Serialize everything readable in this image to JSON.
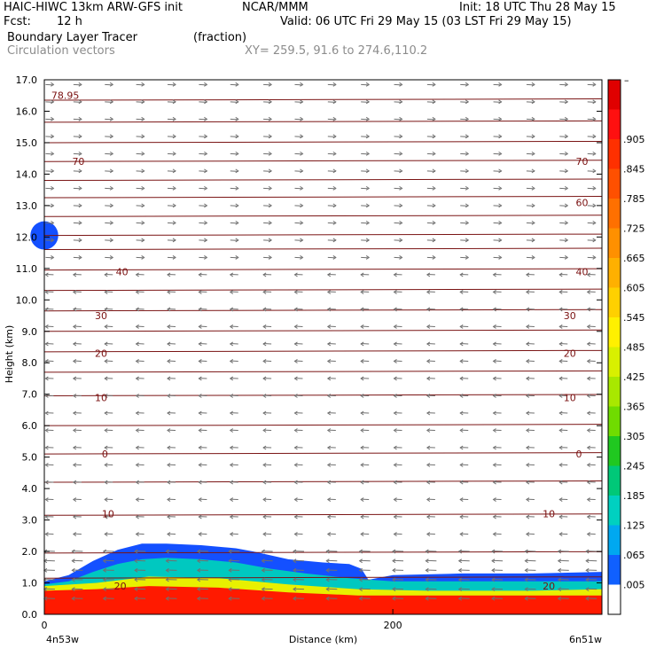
{
  "header": {
    "model": "HAIC-HIWC 13km ARW-GFS init",
    "org": "NCAR/MMM",
    "init": "Init: 18 UTC Thu 28 May 15",
    "fcst_label": "Fcst:",
    "fcst_value": "12 h",
    "valid": "Valid: 06 UTC Fri 29 May 15 (03 LST Fri 29 May 15)",
    "field1": "Boundary Layer Tracer",
    "field1_units": "(fraction)",
    "field2": "Circulation vectors",
    "xy": "XY= 259.5, 91.6 to 274.6,110.2"
  },
  "chart_data": {
    "type": "heatmap",
    "xlabel": "Distance (km)",
    "ylabel": "Height (km)",
    "xlim": [
      0,
      320
    ],
    "ylim": [
      0,
      17
    ],
    "x_ticks": [
      {
        "value": 0,
        "label": "0"
      },
      {
        "value": 200,
        "label": "200"
      }
    ],
    "x_end_labels": {
      "left": "4n53w",
      "right": "6n51w"
    },
    "y_ticks": [
      "0.0",
      "1.0",
      "2.0",
      "3.0",
      "4.0",
      "5.0",
      "6.0",
      "7.0",
      "8.0",
      "9.0",
      "10.0",
      "11.0",
      "12.0",
      "13.0",
      "14.0",
      "15.0",
      "16.0",
      "17.0"
    ],
    "colorbar": {
      "top_label": "–",
      "labels": [
        ".905",
        ".845",
        ".785",
        ".725",
        ".665",
        ".605",
        ".545",
        ".485",
        ".425",
        ".365",
        ".305",
        ".245",
        ".185",
        ".125",
        ".065",
        ".005"
      ],
      "colors": [
        "#e00000",
        "#ff1010",
        "#ff3000",
        "#ff5000",
        "#ff7000",
        "#ff9000",
        "#ffb000",
        "#ffd000",
        "#fff000",
        "#d8f000",
        "#a8e800",
        "#70dc00",
        "#20c820",
        "#00c878",
        "#00d0c0",
        "#00a8f0",
        "#1060ff",
        "#ffffff"
      ]
    },
    "contour_labels": [
      {
        "text": "78.95",
        "x": 4,
        "y": 16.5
      },
      {
        "text": "70",
        "x": 16,
        "y": 14.4
      },
      {
        "text": "70",
        "x": 305,
        "y": 14.4
      },
      {
        "text": "60",
        "x": 305,
        "y": 13.1
      },
      {
        "text": "40",
        "x": 41,
        "y": 10.9
      },
      {
        "text": "40",
        "x": 305,
        "y": 10.9
      },
      {
        "text": "30",
        "x": 29,
        "y": 9.5
      },
      {
        "text": "30",
        "x": 298,
        "y": 9.5
      },
      {
        "text": "20",
        "x": 29,
        "y": 8.3
      },
      {
        "text": "20",
        "x": 298,
        "y": 8.3
      },
      {
        "text": "10",
        "x": 29,
        "y": 6.9
      },
      {
        "text": "10",
        "x": 298,
        "y": 6.9
      },
      {
        "text": "0",
        "x": 33,
        "y": 5.1
      },
      {
        "text": "0",
        "x": 305,
        "y": 5.1
      },
      {
        "text": "10",
        "x": 33,
        "y": 3.2
      },
      {
        "text": "10",
        "x": 286,
        "y": 3.2
      },
      {
        "text": "20",
        "x": 40,
        "y": 0.9
      },
      {
        "text": "20",
        "x": 286,
        "y": 0.9
      }
    ],
    "contour_lines": {
      "heights": [
        1.15,
        1.95,
        3.15,
        4.2,
        5.1,
        6.0,
        6.95,
        7.7,
        8.35,
        9.0,
        9.65,
        10.3,
        10.95,
        11.6,
        12.05,
        12.65,
        13.25,
        13.8,
        14.4,
        15.0,
        15.65,
        16.35
      ]
    },
    "vectors": {
      "columns": [
        3,
        19,
        37,
        55,
        73,
        91,
        109,
        128,
        146,
        165,
        184,
        203,
        222,
        241,
        260,
        279,
        298,
        314
      ],
      "levels": [
        0.5,
        0.8,
        1.1,
        1.4,
        1.7,
        2.0,
        2.55,
        3.1,
        3.65,
        4.2,
        4.75,
        5.3,
        5.85,
        6.4,
        6.95,
        7.5,
        8.05,
        8.6,
        9.15,
        9.7,
        10.25,
        10.8,
        11.35,
        11.9,
        12.45,
        13.0,
        13.55,
        14.1,
        14.65,
        15.2,
        15.75,
        16.3,
        16.85
      ],
      "direction_change_km": 11.0
    },
    "tracer": {
      "outer_top": [
        [
          0,
          1.05
        ],
        [
          14,
          1.25
        ],
        [
          28,
          1.7
        ],
        [
          42,
          2.05
        ],
        [
          56,
          2.25
        ],
        [
          70,
          2.25
        ],
        [
          90,
          2.2
        ],
        [
          110,
          2.1
        ],
        [
          120,
          2.0
        ],
        [
          140,
          1.75
        ],
        [
          160,
          1.65
        ],
        [
          175,
          1.6
        ],
        [
          182,
          1.45
        ],
        [
          186,
          1.1
        ],
        [
          200,
          1.25
        ],
        [
          240,
          1.3
        ],
        [
          280,
          1.3
        ],
        [
          320,
          1.35
        ]
      ],
      "mid_top": [
        [
          0,
          0.95
        ],
        [
          14,
          1.05
        ],
        [
          28,
          1.35
        ],
        [
          42,
          1.6
        ],
        [
          56,
          1.75
        ],
        [
          70,
          1.8
        ],
        [
          90,
          1.75
        ],
        [
          110,
          1.65
        ],
        [
          130,
          1.45
        ],
        [
          150,
          1.3
        ],
        [
          175,
          1.15
        ],
        [
          200,
          1.05
        ],
        [
          240,
          1.05
        ],
        [
          280,
          1.05
        ],
        [
          320,
          1.05
        ]
      ],
      "yellow_top": [
        [
          0,
          0.9
        ],
        [
          30,
          1.0
        ],
        [
          60,
          1.2
        ],
        [
          100,
          1.15
        ],
        [
          140,
          0.95
        ],
        [
          180,
          0.8
        ],
        [
          220,
          0.75
        ],
        [
          280,
          0.75
        ],
        [
          320,
          0.8
        ]
      ],
      "red_top": [
        [
          0,
          0.75
        ],
        [
          30,
          0.8
        ],
        [
          60,
          0.9
        ],
        [
          100,
          0.85
        ],
        [
          140,
          0.7
        ],
        [
          180,
          0.6
        ],
        [
          240,
          0.6
        ],
        [
          320,
          0.6
        ]
      ],
      "blob": {
        "x": 0,
        "y": 12.05,
        "width_km": 8,
        "height_km": 0.9
      }
    }
  }
}
